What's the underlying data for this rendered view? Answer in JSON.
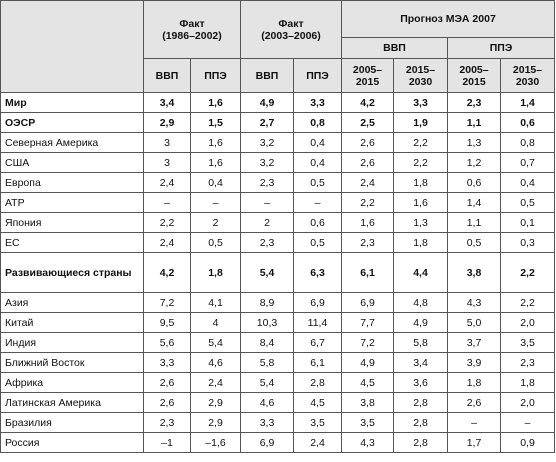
{
  "header": {
    "fact_1": "Факт\n(1986–2002)",
    "fact_2": "Факт\n(2003–2006)",
    "forecast": "Прогноз МЭА 2007",
    "forecast_groups": [
      "ВВП",
      "ППЭ"
    ],
    "columns": [
      "ВВП",
      "ППЭ",
      "ВВП",
      "ППЭ",
      "2005–\n2015",
      "2015–\n2030",
      "2005–\n2015",
      "2015–\n2030"
    ]
  },
  "table": {
    "rows": [
      [
        "Мир",
        "3,4",
        "1,6",
        "4,9",
        "3,3",
        "4,2",
        "3,3",
        "2,3",
        "1,4"
      ],
      [
        "ОЭСР",
        "2,9",
        "1,5",
        "2,7",
        "0,8",
        "2,5",
        "1,9",
        "1,1",
        "0,6"
      ],
      [
        "Северная Америка",
        "3",
        "1,6",
        "3,2",
        "0,4",
        "2,6",
        "2,2",
        "1,3",
        "0,8"
      ],
      [
        "США",
        "3",
        "1,6",
        "3,2",
        "0,4",
        "2,6",
        "2,2",
        "1,2",
        "0,7"
      ],
      [
        "Европа",
        "2,4",
        "0,4",
        "2,3",
        "0,5",
        "2,4",
        "1,8",
        "0,6",
        "0,4"
      ],
      [
        "АТР",
        "–",
        "–",
        "–",
        "–",
        "2,2",
        "1,6",
        "1,4",
        "0,5"
      ],
      [
        "Япония",
        "2,2",
        "2",
        "2",
        "0,6",
        "1,6",
        "1,3",
        "1,1",
        "0,1"
      ],
      [
        "ЕС",
        "2,4",
        "0,5",
        "2,3",
        "0,5",
        "2,3",
        "1,8",
        "0,5",
        "0,3"
      ],
      [
        "Развивающиеся страны",
        "4,2",
        "1,8",
        "5,4",
        "6,3",
        "6,1",
        "4,4",
        "3,8",
        "2,2"
      ],
      [
        "Азия",
        "7,2",
        "4,1",
        "8,9",
        "6,9",
        "6,9",
        "4,8",
        "4,3",
        "2,2"
      ],
      [
        "Китай",
        "9,5",
        "4",
        "10,3",
        "11,4",
        "7,7",
        "4,9",
        "5,0",
        "2,0"
      ],
      [
        "Индия",
        "5,6",
        "5,4",
        "8,4",
        "6,7",
        "7,2",
        "5,8",
        "3,7",
        "3,5"
      ],
      [
        "Ближний Восток",
        "3,3",
        "4,6",
        "5,8",
        "6,1",
        "4,9",
        "3,4",
        "3,9",
        "2,3"
      ],
      [
        "Африка",
        "2,6",
        "2,4",
        "5,4",
        "2,8",
        "4,5",
        "3,6",
        "1,8",
        "1,8"
      ],
      [
        "Латинская Америка",
        "2,6",
        "2,9",
        "4,6",
        "4,5",
        "3,8",
        "2,8",
        "2,6",
        "2,0"
      ],
      [
        "Бразилия",
        "2,3",
        "2,9",
        "3,3",
        "3,5",
        "3,5",
        "2,8",
        "–",
        "–"
      ],
      [
        "Россия",
        "–1",
        "–1,6",
        "6,9",
        "2,4",
        "4,3",
        "2,8",
        "1,7",
        "0,9"
      ]
    ]
  }
}
